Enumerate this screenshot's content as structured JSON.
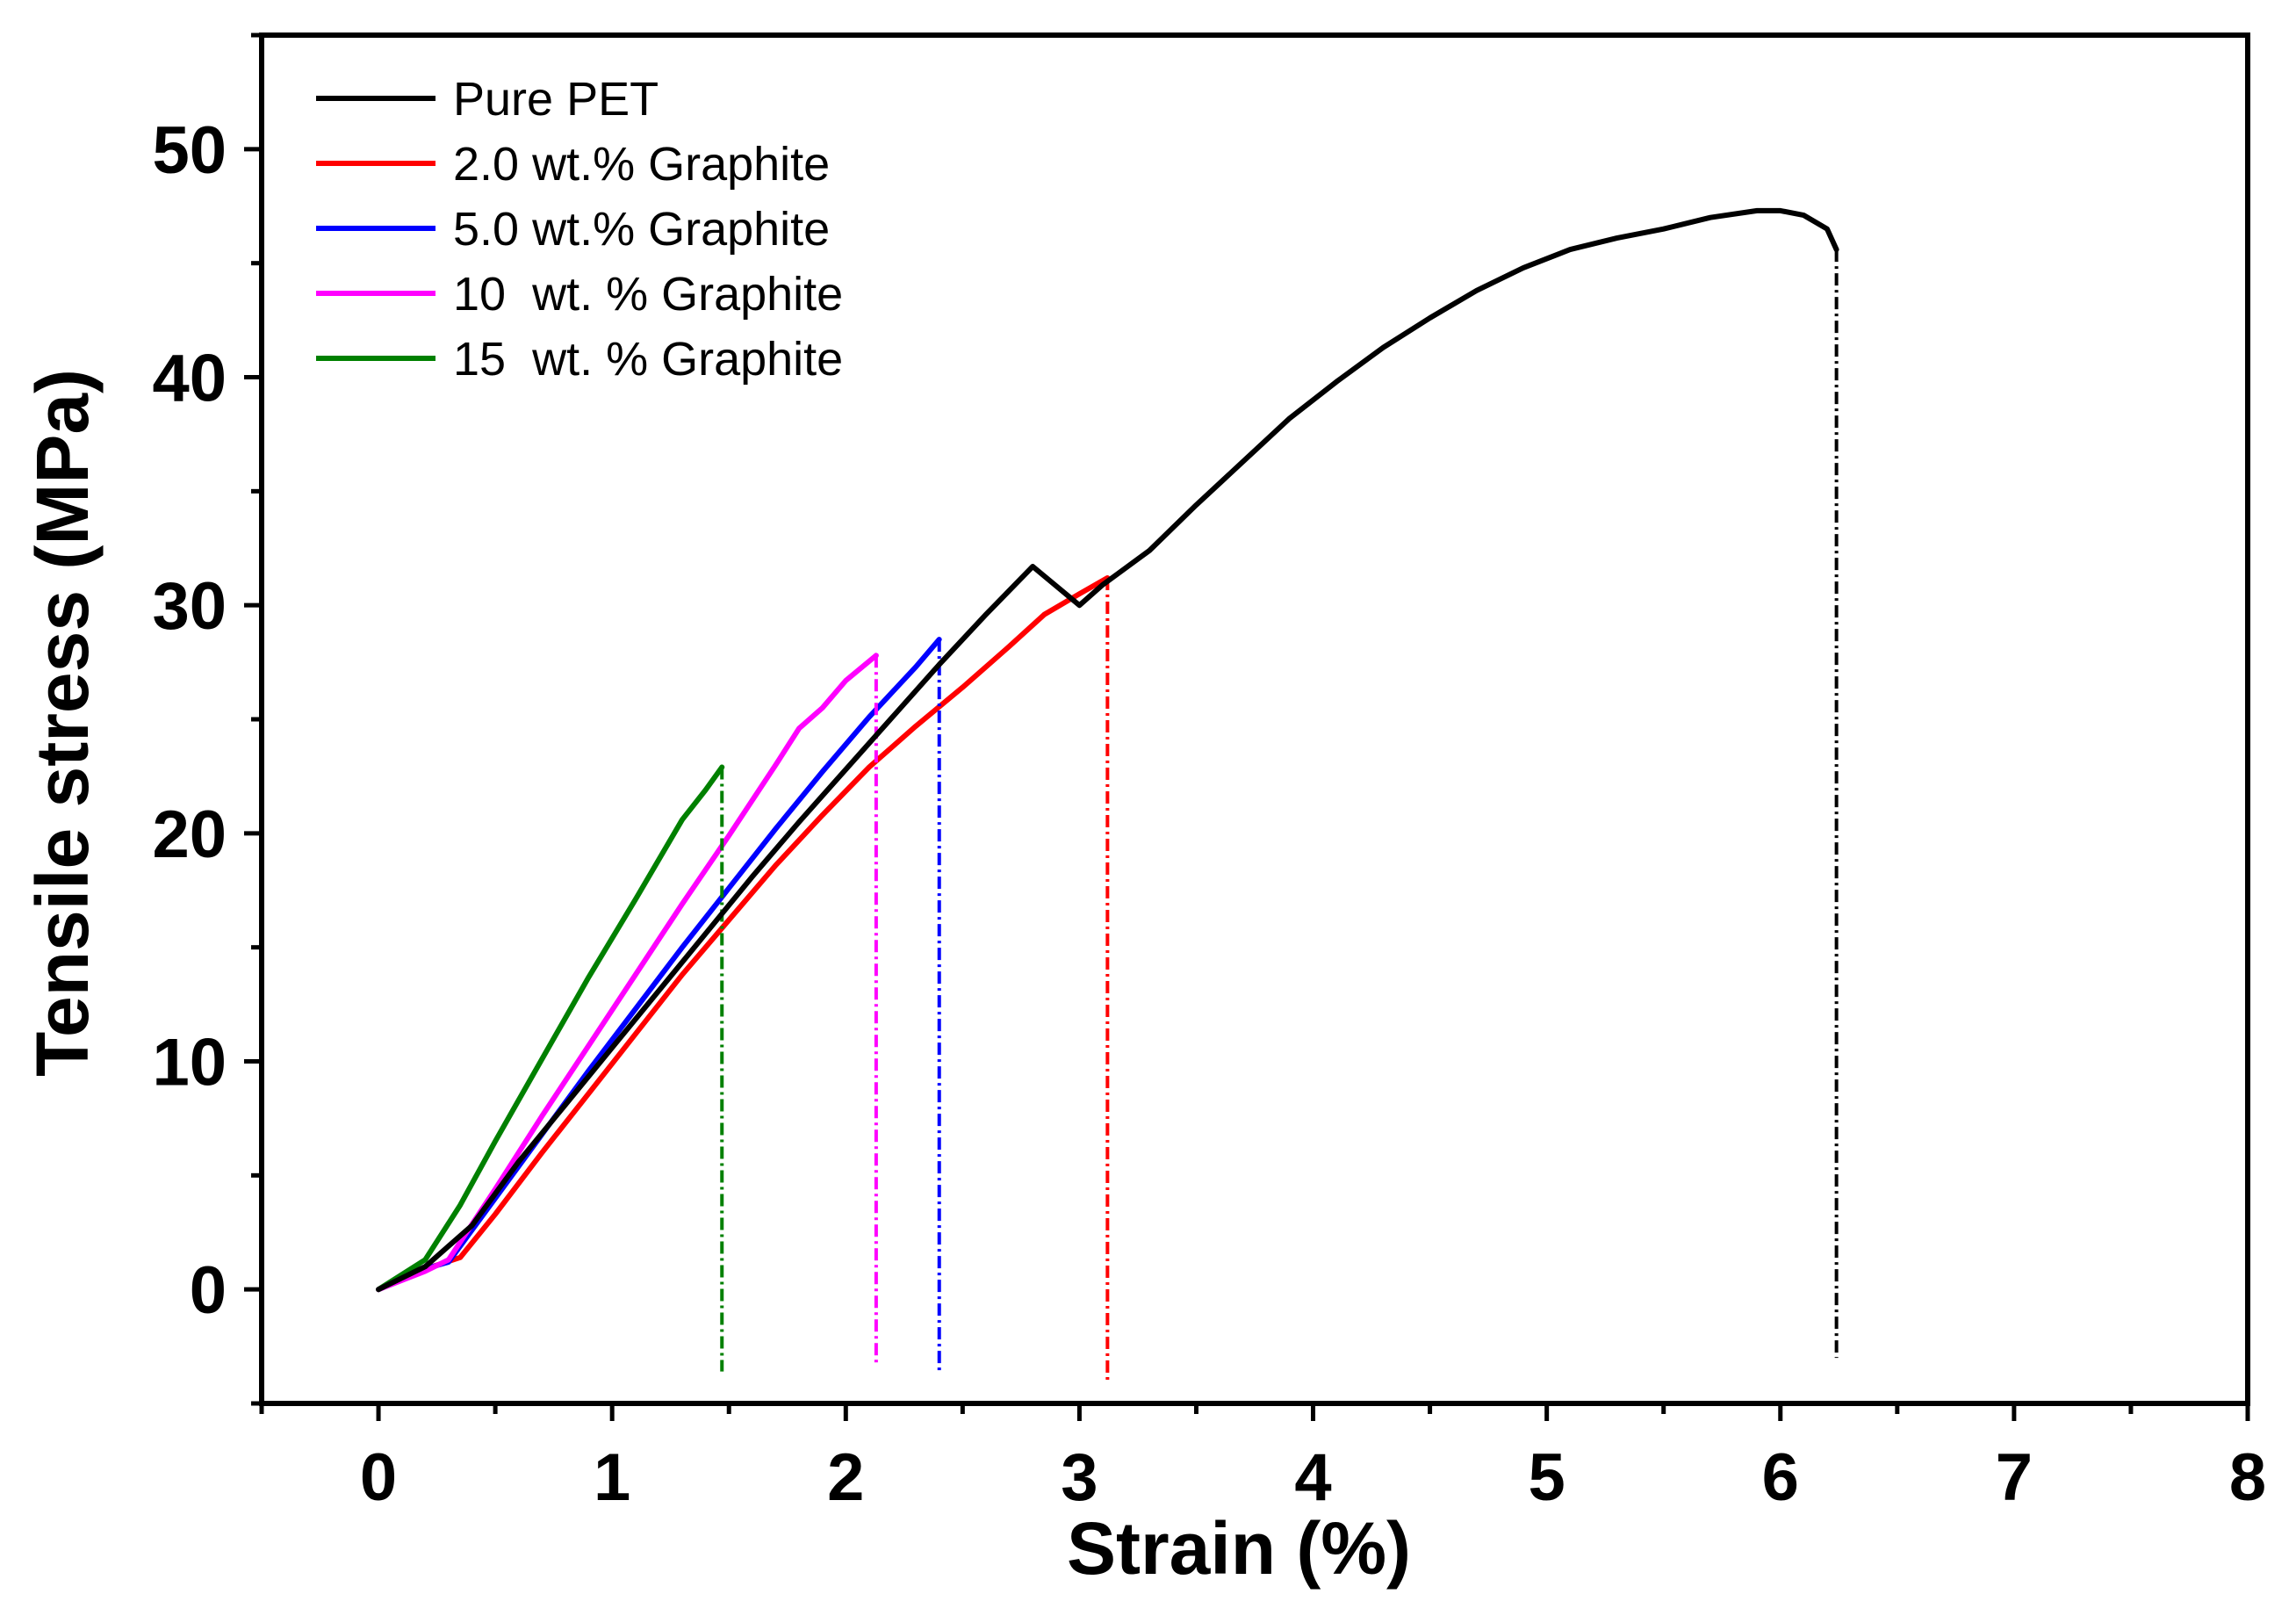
{
  "chart_data": {
    "type": "line",
    "title": "",
    "xlabel": "Strain (%)",
    "ylabel": "Tensile stress (MPa)",
    "xlim": [
      -0.5,
      8
    ],
    "ylim": [
      -5,
      55
    ],
    "xticks": [
      "0",
      "1",
      "2",
      "3",
      "4",
      "5",
      "6",
      "7",
      "8"
    ],
    "yticks": [
      "0",
      "10",
      "20",
      "30",
      "40",
      "50"
    ],
    "legend_position": "top-left",
    "series": [
      {
        "name": "Pure PET",
        "color": "#000000",
        "break_strain": 6.24,
        "break_drop_to": -3.0,
        "points": [
          [
            0,
            0
          ],
          [
            0.2,
            1.0
          ],
          [
            0.4,
            2.8
          ],
          [
            0.6,
            5.6
          ],
          [
            0.8,
            8.1
          ],
          [
            1.0,
            10.6
          ],
          [
            1.2,
            13.1
          ],
          [
            1.4,
            15.6
          ],
          [
            1.6,
            18.1
          ],
          [
            1.8,
            20.5
          ],
          [
            2.0,
            22.8
          ],
          [
            2.2,
            25.1
          ],
          [
            2.4,
            27.4
          ],
          [
            2.6,
            29.6
          ],
          [
            2.8,
            31.7
          ],
          [
            3.0,
            30.0
          ],
          [
            3.1,
            30.9
          ],
          [
            3.3,
            32.4
          ],
          [
            3.5,
            34.4
          ],
          [
            3.7,
            36.3
          ],
          [
            3.9,
            38.2
          ],
          [
            4.1,
            39.8
          ],
          [
            4.3,
            41.3
          ],
          [
            4.5,
            42.6
          ],
          [
            4.7,
            43.8
          ],
          [
            4.9,
            44.8
          ],
          [
            5.1,
            45.6
          ],
          [
            5.3,
            46.1
          ],
          [
            5.5,
            46.5
          ],
          [
            5.7,
            47.0
          ],
          [
            5.9,
            47.3
          ],
          [
            6.0,
            47.3
          ],
          [
            6.1,
            47.1
          ],
          [
            6.2,
            46.5
          ],
          [
            6.24,
            45.6
          ]
        ]
      },
      {
        "name": "2.0 wt.% Graphite",
        "color": "#ff0000",
        "break_strain": 3.12,
        "break_drop_to": -4.0,
        "points": [
          [
            0,
            0
          ],
          [
            0.2,
            0.9
          ],
          [
            0.35,
            1.4
          ],
          [
            0.5,
            3.3
          ],
          [
            0.7,
            6.0
          ],
          [
            0.9,
            8.6
          ],
          [
            1.1,
            11.2
          ],
          [
            1.3,
            13.8
          ],
          [
            1.5,
            16.2
          ],
          [
            1.7,
            18.6
          ],
          [
            1.9,
            20.8
          ],
          [
            2.1,
            22.9
          ],
          [
            2.3,
            24.7
          ],
          [
            2.5,
            26.4
          ],
          [
            2.7,
            28.2
          ],
          [
            2.85,
            29.6
          ],
          [
            3.0,
            30.5
          ],
          [
            3.12,
            31.2
          ]
        ]
      },
      {
        "name": "5.0 wt.% Graphite",
        "color": "#0000ff",
        "break_strain": 2.4,
        "break_drop_to": -3.6,
        "points": [
          [
            0,
            0
          ],
          [
            0.2,
            0.9
          ],
          [
            0.3,
            1.2
          ],
          [
            0.5,
            4.0
          ],
          [
            0.7,
            6.8
          ],
          [
            0.9,
            9.6
          ],
          [
            1.1,
            12.3
          ],
          [
            1.3,
            15.0
          ],
          [
            1.5,
            17.6
          ],
          [
            1.7,
            20.2
          ],
          [
            1.9,
            22.7
          ],
          [
            2.1,
            25.1
          ],
          [
            2.3,
            27.3
          ],
          [
            2.4,
            28.5
          ]
        ]
      },
      {
        "name": "10  wt. % Graphite",
        "color": "#ff00ff",
        "break_strain": 2.13,
        "break_drop_to": -3.3,
        "points": [
          [
            0,
            0
          ],
          [
            0.2,
            0.8
          ],
          [
            0.3,
            1.3
          ],
          [
            0.5,
            4.4
          ],
          [
            0.7,
            7.6
          ],
          [
            0.9,
            10.7
          ],
          [
            1.1,
            13.8
          ],
          [
            1.3,
            16.9
          ],
          [
            1.5,
            19.9
          ],
          [
            1.7,
            23.0
          ],
          [
            1.8,
            24.6
          ],
          [
            1.9,
            25.5
          ],
          [
            2.0,
            26.7
          ],
          [
            2.13,
            27.8
          ]
        ]
      },
      {
        "name": "15  wt. % Graphite",
        "color": "#008000",
        "break_strain": 1.47,
        "break_drop_to": -3.6,
        "points": [
          [
            0,
            0
          ],
          [
            0.2,
            1.3
          ],
          [
            0.35,
            3.7
          ],
          [
            0.5,
            6.5
          ],
          [
            0.7,
            10.1
          ],
          [
            0.9,
            13.7
          ],
          [
            1.1,
            17.1
          ],
          [
            1.3,
            20.6
          ],
          [
            1.4,
            21.9
          ],
          [
            1.47,
            22.9
          ]
        ]
      }
    ]
  }
}
